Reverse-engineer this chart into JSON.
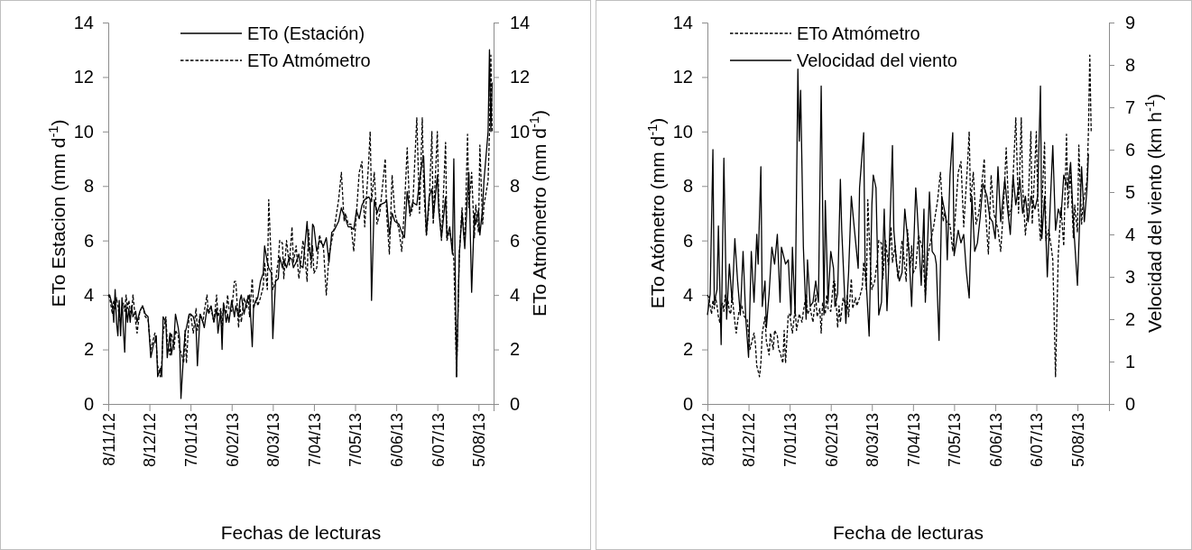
{
  "chart_data": [
    {
      "type": "line",
      "xlabel": "Fechas de lecturas",
      "ylabel": "ETo Estacion (mm d$^{-1}$)",
      "y2label": "ETo Atmómetro (mm d$^{-1}$)",
      "legend": "top",
      "grid": false,
      "marker": "none",
      "xlim": [
        "2012-11-08",
        "2013-08-16"
      ],
      "xticks": [
        {
          "value": "2012-11-08",
          "label": "8/11/12"
        },
        {
          "value": "2012-12-08",
          "label": "8/12/12"
        },
        {
          "value": "2013-01-07",
          "label": "7/01/13"
        },
        {
          "value": "2013-02-06",
          "label": "6/02/13"
        },
        {
          "value": "2013-03-08",
          "label": "8/03/13"
        },
        {
          "value": "2013-04-07",
          "label": "7/04/13"
        },
        {
          "value": "2013-05-07",
          "label": "7/05/13"
        },
        {
          "value": "2013-06-06",
          "label": "6/06/13"
        },
        {
          "value": "2013-07-06",
          "label": "6/07/13"
        },
        {
          "value": "2013-08-05",
          "label": "5/08/13"
        }
      ],
      "ylim": [
        0,
        14
      ],
      "yticks": [
        0,
        2,
        4,
        6,
        8,
        10,
        12,
        14
      ],
      "y2lim": [
        0,
        14
      ],
      "y2ticks": [
        0,
        2,
        4,
        6,
        8,
        10,
        12,
        14
      ],
      "x": [
        "2012-11-08",
        "2012-11-09",
        "2012-11-11",
        "2012-11-12",
        "2012-11-13",
        "2012-11-14",
        "2012-11-15",
        "2012-11-16",
        "2012-11-17",
        "2012-11-18",
        "2012-11-19",
        "2012-11-20",
        "2012-11-21",
        "2012-11-22",
        "2012-11-23",
        "2012-11-24",
        "2012-11-25",
        "2012-11-26",
        "2012-11-28",
        "2012-11-29",
        "2012-12-01",
        "2012-12-03",
        "2012-12-05",
        "2012-12-07",
        "2012-12-09",
        "2012-12-11",
        "2012-12-12",
        "2012-12-13",
        "2012-12-14",
        "2012-12-16",
        "2012-12-17",
        "2012-12-18",
        "2012-12-20",
        "2012-12-21",
        "2012-12-23",
        "2012-12-24",
        "2012-12-26",
        "2012-12-27",
        "2012-12-29",
        "2012-12-30",
        "2012-12-31",
        "2013-01-02",
        "2013-01-03",
        "2013-01-04",
        "2013-01-06",
        "2013-01-07",
        "2013-01-09",
        "2013-01-11",
        "2013-01-12",
        "2013-01-14",
        "2013-01-16",
        "2013-01-17",
        "2013-01-19",
        "2013-01-20",
        "2013-01-22",
        "2013-01-24",
        "2013-01-26",
        "2013-01-27",
        "2013-01-29",
        "2013-01-30",
        "2013-01-31",
        "2013-02-02",
        "2013-02-03",
        "2013-02-04",
        "2013-02-06",
        "2013-02-08",
        "2013-02-09",
        "2013-02-11",
        "2013-02-12",
        "2013-02-13",
        "2013-02-15",
        "2013-02-17",
        "2013-02-18",
        "2013-02-19",
        "2013-02-21",
        "2013-02-22",
        "2013-02-24",
        "2013-02-25",
        "2013-02-27",
        "2013-03-01",
        "2013-03-02",
        "2013-03-04",
        "2013-03-05",
        "2013-03-07",
        "2013-03-08",
        "2013-03-10",
        "2013-03-12",
        "2013-03-13",
        "2013-03-15",
        "2013-03-16",
        "2013-03-18",
        "2013-03-20",
        "2013-03-22",
        "2013-03-23",
        "2013-03-25",
        "2013-03-27",
        "2013-03-28",
        "2013-03-30",
        "2013-03-31",
        "2013-04-02",
        "2013-04-03",
        "2013-04-05",
        "2013-04-06",
        "2013-04-07",
        "2013-04-09",
        "2013-04-11",
        "2013-04-14",
        "2013-04-16",
        "2013-04-18",
        "2013-04-20",
        "2013-04-22",
        "2013-04-25",
        "2013-04-27",
        "2013-04-29",
        "2013-04-30",
        "2013-05-02",
        "2013-05-04",
        "2013-05-06",
        "2013-05-08",
        "2013-05-10",
        "2013-05-12",
        "2013-05-14",
        "2013-05-17",
        "2013-05-18",
        "2013-05-19",
        "2013-05-21",
        "2013-05-23",
        "2013-05-25",
        "2013-05-29",
        "2013-05-30",
        "2013-06-01",
        "2013-06-03",
        "2013-06-05",
        "2013-06-08",
        "2013-06-10",
        "2013-06-12",
        "2013-06-14",
        "2013-06-16",
        "2013-06-18",
        "2013-06-21",
        "2013-06-23",
        "2013-06-25",
        "2013-06-26",
        "2013-06-28",
        "2013-06-30",
        "2013-07-02",
        "2013-07-03",
        "2013-07-06",
        "2013-07-07",
        "2013-07-09",
        "2013-07-12",
        "2013-07-13",
        "2013-07-15",
        "2013-07-17",
        "2013-07-18",
        "2013-07-20",
        "2013-07-22",
        "2013-07-24",
        "2013-07-26",
        "2013-07-28",
        "2013-07-29",
        "2013-07-31",
        "2013-08-02",
        "2013-08-03",
        "2013-08-05",
        "2013-08-06",
        "2013-08-08",
        "2013-08-09",
        "2013-08-12",
        "2013-08-13",
        "2013-08-14",
        "2013-08-15"
      ],
      "series": [
        {
          "name": "ETo (Estación)",
          "color": "#000000",
          "line_style": "solid",
          "values": [
            4.0,
            4.0,
            3.6,
            3.0,
            4.2,
            3.0,
            2.5,
            3.8,
            2.5,
            3.9,
            2.7,
            1.9,
            3.6,
            3.0,
            3.5,
            3.0,
            3.6,
            3.2,
            3.4,
            3.0,
            3.4,
            3.6,
            3.3,
            3.2,
            1.7,
            2.2,
            2.3,
            2.5,
            1.0,
            1.3,
            1.0,
            3.2,
            3.0,
            1.7,
            2.6,
            1.8,
            2.4,
            3.3,
            2.8,
            2.4,
            0.2,
            1.9,
            2.6,
            2.8,
            3.3,
            3.3,
            3.2,
            2.8,
            1.4,
            3.3,
            3.0,
            2.8,
            3.5,
            3.4,
            3.6,
            3.0,
            3.5,
            2.6,
            3.4,
            2.0,
            3.7,
            3.0,
            3.3,
            3.0,
            3.8,
            3.2,
            3.6,
            3.2,
            3.8,
            4.0,
            3.3,
            3.8,
            3.9,
            4.0,
            2.1,
            3.6,
            3.8,
            3.9,
            4.5,
            4.8,
            5.8,
            5.2,
            5.0,
            4.8,
            2.4,
            4.5,
            4.6,
            5.4,
            5.0,
            5.3,
            5.0,
            5.4,
            5.3,
            5.0,
            5.2,
            5.5,
            5.1,
            5.0,
            5.6,
            6.7,
            5.8,
            5.3,
            6.6,
            6.5,
            5.6,
            6.0,
            5.8,
            6.1,
            5.2,
            6.3,
            6.4,
            6.7,
            7.2,
            6.9,
            6.8,
            6.5,
            6.5,
            6.4,
            7.1,
            6.8,
            7.3,
            7.5,
            7.6,
            7.5,
            3.8,
            7.5,
            7.0,
            7.3,
            7.4,
            7.5,
            6.2,
            7.0,
            6.7,
            6.6,
            6.3,
            6.1,
            7.8,
            7.0,
            7.4,
            7.3,
            8.2,
            8.9,
            9.1,
            6.2,
            7.6,
            7.9,
            6.8,
            8.4,
            7.1,
            6.1,
            7.6,
            6.1,
            6.5,
            5.5,
            9.0,
            1.0,
            5.5,
            7.0,
            5.7,
            7.7,
            8.5,
            4.1,
            7.0,
            6.6,
            7.1,
            6.2,
            7.2,
            8.2,
            10.0,
            13.0,
            10.0,
            11.8
          ]
        },
        {
          "name": "ETo Atmómetro",
          "color": "#000000",
          "line_style": "dashed",
          "values": [
            4.0,
            3.9,
            3.3,
            3.8,
            3.5,
            3.9,
            3.6,
            3.2,
            3.0,
            3.5,
            3.7,
            3.4,
            4.0,
            3.5,
            3.8,
            3.4,
            3.3,
            4.0,
            3.0,
            2.6,
            3.4,
            3.6,
            3.2,
            3.1,
            2.0,
            2.4,
            2.6,
            2.2,
            1.4,
            1.0,
            1.5,
            2.6,
            3.2,
            2.3,
            1.8,
            2.6,
            2.0,
            2.7,
            2.5,
            2.0,
            1.9,
            1.5,
            2.7,
            1.5,
            3.3,
            3.3,
            2.6,
            3.5,
            2.7,
            3.3,
            3.0,
            3.4,
            4.0,
            3.3,
            3.5,
            3.0,
            4.0,
            3.2,
            3.5,
            2.6,
            3.7,
            3.3,
            4.0,
            3.5,
            3.4,
            4.5,
            4.5,
            2.8,
            3.6,
            3.0,
            3.9,
            3.5,
            4.0,
            3.2,
            4.6,
            3.5,
            3.9,
            3.6,
            3.9,
            4.3,
            5.2,
            4.2,
            7.5,
            5.0,
            4.2,
            4.5,
            5.3,
            6.0,
            5.9,
            4.6,
            6.0,
            5.1,
            6.5,
            5.2,
            5.8,
            4.6,
            5.0,
            6.0,
            5.6,
            4.5,
            6.4,
            5.0,
            5.8,
            4.8,
            5.0,
            6.2,
            5.7,
            4.0,
            5.5,
            6.0,
            6.5,
            7.5,
            8.5,
            6.7,
            7.0,
            6.6,
            6.6,
            5.6,
            7.0,
            8.5,
            8.9,
            6.5,
            9.0,
            10.0,
            7.4,
            8.5,
            6.6,
            7.0,
            9.0,
            7.0,
            5.5,
            8.4,
            7.0,
            6.4,
            5.6,
            7.2,
            9.4,
            6.9,
            7.2,
            10.5,
            7.0,
            10.5,
            8.0,
            6.2,
            7.3,
            10.0,
            6.6,
            10.0,
            7.5,
            6.0,
            9.6,
            6.0,
            6.4,
            5.7,
            5.3,
            1.0,
            5.5,
            7.2,
            5.8,
            9.9,
            7.2,
            8.5,
            6.1,
            7.3,
            6.3,
            9.5,
            6.6,
            7.3,
            8.2,
            10.0,
            12.8,
            10.0
          ]
        }
      ]
    },
    {
      "type": "line",
      "xlabel": "Fecha de lecturas",
      "ylabel": "ETo Atómetro (mm d$^{-1}$)",
      "y2label": "Velocidad del viento (km h$^{-1}$)",
      "legend": "top left",
      "grid": false,
      "marker": "none",
      "xlim": [
        "2012-11-08",
        "2013-08-28"
      ],
      "xticks": [
        {
          "value": "2012-11-08",
          "label": "8/11/12"
        },
        {
          "value": "2012-12-08",
          "label": "8/12/12"
        },
        {
          "value": "2013-01-07",
          "label": "7/01/13"
        },
        {
          "value": "2013-02-06",
          "label": "6/02/13"
        },
        {
          "value": "2013-03-08",
          "label": "8/03/13"
        },
        {
          "value": "2013-04-07",
          "label": "7/04/13"
        },
        {
          "value": "2013-05-07",
          "label": "7/05/13"
        },
        {
          "value": "2013-06-06",
          "label": "6/06/13"
        },
        {
          "value": "2013-07-06",
          "label": "6/07/13"
        },
        {
          "value": "2013-08-05",
          "label": "5/08/13"
        }
      ],
      "ylim": [
        0,
        14
      ],
      "yticks": [
        0,
        2,
        4,
        6,
        8,
        10,
        12,
        14
      ],
      "y2lim": [
        0,
        9
      ],
      "y2ticks": [
        0,
        1,
        2,
        3,
        4,
        5,
        6,
        7,
        8,
        9
      ],
      "x": [
        "2012-11-08",
        "2012-11-09",
        "2012-11-11",
        "2012-11-12",
        "2012-11-13",
        "2012-11-14",
        "2012-11-15",
        "2012-11-16",
        "2012-11-17",
        "2012-11-18",
        "2012-11-19",
        "2012-11-20",
        "2012-11-21",
        "2012-11-22",
        "2012-11-23",
        "2012-11-24",
        "2012-11-25",
        "2012-11-26",
        "2012-11-28",
        "2012-11-29",
        "2012-12-01",
        "2012-12-03",
        "2012-12-05",
        "2012-12-07",
        "2012-12-09",
        "2012-12-11",
        "2012-12-12",
        "2012-12-13",
        "2012-12-14",
        "2012-12-16",
        "2012-12-17",
        "2012-12-18",
        "2012-12-20",
        "2012-12-21",
        "2012-12-23",
        "2012-12-24",
        "2012-12-26",
        "2012-12-27",
        "2012-12-29",
        "2012-12-30",
        "2012-12-31",
        "2013-01-02",
        "2013-01-03",
        "2013-01-04",
        "2013-01-06",
        "2013-01-07",
        "2013-01-09",
        "2013-01-11",
        "2013-01-12",
        "2013-01-14",
        "2013-01-16",
        "2013-01-17",
        "2013-01-19",
        "2013-01-20",
        "2013-01-22",
        "2013-01-24",
        "2013-01-26",
        "2013-01-27",
        "2013-01-29",
        "2013-01-30",
        "2013-01-31",
        "2013-02-02",
        "2013-02-03",
        "2013-02-04",
        "2013-02-06",
        "2013-02-08",
        "2013-02-09",
        "2013-02-11",
        "2013-02-12",
        "2013-02-13",
        "2013-02-15",
        "2013-02-17",
        "2013-02-18",
        "2013-02-19",
        "2013-02-21",
        "2013-02-22",
        "2013-02-24",
        "2013-02-25",
        "2013-02-27",
        "2013-03-01",
        "2013-03-02",
        "2013-03-04",
        "2013-03-05",
        "2013-03-07",
        "2013-03-08",
        "2013-03-10",
        "2013-03-12",
        "2013-03-13",
        "2013-03-15",
        "2013-03-16",
        "2013-03-18",
        "2013-03-20",
        "2013-03-22",
        "2013-03-23",
        "2013-03-25",
        "2013-03-27",
        "2013-03-28",
        "2013-03-30",
        "2013-03-31",
        "2013-04-02",
        "2013-04-03",
        "2013-04-05",
        "2013-04-06",
        "2013-04-07",
        "2013-04-09",
        "2013-04-11",
        "2013-04-14",
        "2013-04-16",
        "2013-04-18",
        "2013-04-20",
        "2013-04-22",
        "2013-04-25",
        "2013-04-27",
        "2013-04-29",
        "2013-04-30",
        "2013-05-02",
        "2013-05-04",
        "2013-05-06",
        "2013-05-08",
        "2013-05-10",
        "2013-05-12",
        "2013-05-14",
        "2013-05-17",
        "2013-05-18",
        "2013-05-19",
        "2013-05-21",
        "2013-05-23",
        "2013-05-25",
        "2013-05-29",
        "2013-05-30",
        "2013-06-01",
        "2013-06-03",
        "2013-06-05",
        "2013-06-08",
        "2013-06-10",
        "2013-06-12",
        "2013-06-14",
        "2013-06-16",
        "2013-06-18",
        "2013-06-21",
        "2013-06-23",
        "2013-06-25",
        "2013-06-26",
        "2013-06-28",
        "2013-06-30",
        "2013-07-02",
        "2013-07-03",
        "2013-07-06",
        "2013-07-07",
        "2013-07-09",
        "2013-07-12",
        "2013-07-13",
        "2013-07-15",
        "2013-07-17",
        "2013-07-18",
        "2013-07-20",
        "2013-07-22",
        "2013-07-24",
        "2013-07-26",
        "2013-07-28",
        "2013-07-29",
        "2013-07-31",
        "2013-08-02",
        "2013-08-03",
        "2013-08-05",
        "2013-08-06",
        "2013-08-08",
        "2013-08-09",
        "2013-08-12",
        "2013-08-13",
        "2013-08-14",
        "2013-08-15"
      ],
      "series": [
        {
          "name": "ETo Atmómetro",
          "color": "#000000",
          "line_style": "dashed",
          "values": [
            4.0,
            3.9,
            3.3,
            3.8,
            3.5,
            3.9,
            3.6,
            3.2,
            3.0,
            3.5,
            3.7,
            3.4,
            4.0,
            3.5,
            3.8,
            3.4,
            3.3,
            4.0,
            3.0,
            2.6,
            3.4,
            3.6,
            3.2,
            3.1,
            2.0,
            2.4,
            2.6,
            2.2,
            1.4,
            1.0,
            1.5,
            2.6,
            3.2,
            2.3,
            1.8,
            2.6,
            2.0,
            2.7,
            2.5,
            2.0,
            1.9,
            1.5,
            2.7,
            1.5,
            3.3,
            3.3,
            2.6,
            3.5,
            2.7,
            3.3,
            3.0,
            3.4,
            4.0,
            3.3,
            3.5,
            3.0,
            4.0,
            3.2,
            3.5,
            2.6,
            3.7,
            3.3,
            4.0,
            3.5,
            3.4,
            4.5,
            4.5,
            2.8,
            3.6,
            3.0,
            3.9,
            3.5,
            4.0,
            3.2,
            4.6,
            3.5,
            3.9,
            3.6,
            3.9,
            4.3,
            5.2,
            4.2,
            7.5,
            5.0,
            4.2,
            4.5,
            5.3,
            6.0,
            5.9,
            4.6,
            6.0,
            5.1,
            6.5,
            5.2,
            5.8,
            4.6,
            5.0,
            6.0,
            5.6,
            4.5,
            6.4,
            5.0,
            5.8,
            4.8,
            5.0,
            6.2,
            5.7,
            4.0,
            5.5,
            6.0,
            6.5,
            7.5,
            8.5,
            6.7,
            7.0,
            6.6,
            6.6,
            5.6,
            7.0,
            8.5,
            8.9,
            6.5,
            9.0,
            10.0,
            7.4,
            8.5,
            6.6,
            7.0,
            9.0,
            7.0,
            5.5,
            8.4,
            7.0,
            6.4,
            5.6,
            7.2,
            9.4,
            6.9,
            7.2,
            10.5,
            7.0,
            10.5,
            8.0,
            6.2,
            7.3,
            10.0,
            6.6,
            10.0,
            7.5,
            6.0,
            9.6,
            6.0,
            6.4,
            5.7,
            5.3,
            1.0,
            5.5,
            7.2,
            5.8,
            9.9,
            7.2,
            8.5,
            6.1,
            7.3,
            6.3,
            9.5,
            6.6,
            7.3,
            8.2,
            10.0,
            12.8,
            10.0
          ]
        },
        {
          "name": "Velocidad del viento",
          "color": "#000000",
          "line_style": "solid",
          "axis": "y2",
          "x": [
            "2012-11-08",
            "2012-11-10",
            "2012-11-12",
            "2012-11-13",
            "2012-11-15",
            "2012-11-16",
            "2012-11-18",
            "2012-11-20",
            "2012-11-22",
            "2012-11-24",
            "2012-11-26",
            "2012-11-28",
            "2012-11-30",
            "2012-12-02",
            "2012-12-04",
            "2012-12-06",
            "2012-12-08",
            "2012-12-10",
            "2012-12-12",
            "2012-12-14",
            "2012-12-15",
            "2012-12-17",
            "2012-12-18",
            "2012-12-20",
            "2012-12-21",
            "2012-12-23",
            "2012-12-25",
            "2012-12-27",
            "2012-12-29",
            "2012-12-31",
            "2013-01-01",
            "2013-01-04",
            "2013-01-06",
            "2013-01-08",
            "2013-01-09",
            "2013-01-11",
            "2013-01-13",
            "2013-01-14",
            "2013-01-15",
            "2013-01-17",
            "2013-01-19",
            "2013-01-20",
            "2013-01-22",
            "2013-01-24",
            "2013-01-26",
            "2013-01-28",
            "2013-01-30",
            "2013-02-01",
            "2013-02-02",
            "2013-02-04",
            "2013-02-06",
            "2013-02-08",
            "2013-02-09",
            "2013-02-11",
            "2013-02-13",
            "2013-02-14",
            "2013-02-17",
            "2013-02-19",
            "2013-02-21",
            "2013-02-23",
            "2013-02-26",
            "2013-02-27",
            "2013-03-02",
            "2013-03-03",
            "2013-03-06",
            "2013-03-08",
            "2013-03-09",
            "2013-03-11",
            "2013-03-13",
            "2013-03-15",
            "2013-03-17",
            "2013-03-19",
            "2013-03-20",
            "2013-03-23",
            "2013-03-24",
            "2013-03-26",
            "2013-03-28",
            "2013-03-30",
            "2013-04-01",
            "2013-04-04",
            "2013-04-06",
            "2013-04-09",
            "2013-04-10",
            "2013-04-13",
            "2013-04-15",
            "2013-04-16",
            "2013-04-19",
            "2013-04-21",
            "2013-04-23",
            "2013-04-24",
            "2013-04-26",
            "2013-04-28",
            "2013-05-01",
            "2013-05-02",
            "2013-05-04",
            "2013-05-06",
            "2013-05-07",
            "2013-05-10",
            "2013-05-12",
            "2013-05-14",
            "2013-05-16",
            "2013-05-18",
            "2013-05-20",
            "2013-05-22",
            "2013-05-24",
            "2013-05-26",
            "2013-05-28",
            "2013-05-31",
            "2013-06-02",
            "2013-06-04",
            "2013-06-06",
            "2013-06-08",
            "2013-06-10",
            "2013-06-13",
            "2013-06-15",
            "2013-06-17",
            "2013-06-19",
            "2013-06-21",
            "2013-06-24",
            "2013-06-26",
            "2013-06-28",
            "2013-06-30",
            "2013-07-02",
            "2013-07-05",
            "2013-07-07",
            "2013-07-09",
            "2013-07-10",
            "2013-07-12",
            "2013-07-14",
            "2013-07-16",
            "2013-07-18",
            "2013-07-20",
            "2013-07-22",
            "2013-07-24",
            "2013-07-26",
            "2013-07-29",
            "2013-07-31",
            "2013-08-02",
            "2013-08-05",
            "2013-08-08",
            "2013-08-10",
            "2013-08-12",
            "2013-08-13"
          ],
          "values": [
            2.1,
            2.6,
            6.0,
            2.4,
            2.7,
            4.2,
            1.4,
            5.8,
            2.0,
            3.3,
            2.4,
            3.9,
            2.9,
            2.1,
            3.6,
            2.0,
            1.1,
            3.6,
            2.4,
            4.0,
            3.3,
            5.6,
            2.3,
            2.9,
            1.8,
            2.6,
            3.7,
            3.3,
            4.0,
            2.4,
            3.7,
            3.3,
            3.4,
            2.1,
            3.7,
            2.1,
            7.9,
            6.2,
            7.4,
            3.7,
            2.0,
            3.4,
            2.3,
            2.4,
            2.9,
            2.4,
            7.5,
            2.1,
            4.8,
            2.4,
            3.6,
            3.2,
            2.3,
            2.6,
            5.3,
            4.1,
            1.9,
            3.1,
            4.9,
            4.2,
            3.2,
            5.1,
            6.4,
            3.4,
            1.6,
            4.7,
            5.4,
            5.1,
            2.1,
            2.4,
            4.6,
            2.2,
            3.0,
            6.1,
            4.1,
            3.3,
            2.9,
            3.1,
            4.6,
            3.6,
            2.3,
            5.1,
            4.6,
            2.8,
            4.6,
            2.4,
            5.0,
            3.6,
            3.5,
            3.3,
            1.5,
            4.9,
            4.4,
            3.4,
            5.4,
            6.4,
            3.5,
            4.1,
            3.8,
            4.0,
            3.1,
            2.5,
            4.9,
            3.6,
            3.8,
            4.4,
            5.2,
            4.9,
            4.4,
            4.3,
            3.9,
            5.6,
            4.3,
            5.3,
            4.6,
            4.0,
            5.4,
            4.7,
            5.3,
            4.5,
            4.9,
            4.3,
            4.9,
            4.6,
            4.9,
            7.5,
            3.9,
            4.9,
            3.0,
            4.6,
            6.1,
            4.1,
            4.6,
            4.4,
            5.4,
            5.1,
            5.7,
            4.3,
            2.8,
            5.6,
            4.3,
            5.1,
            5.9
          ]
        }
      ]
    }
  ]
}
